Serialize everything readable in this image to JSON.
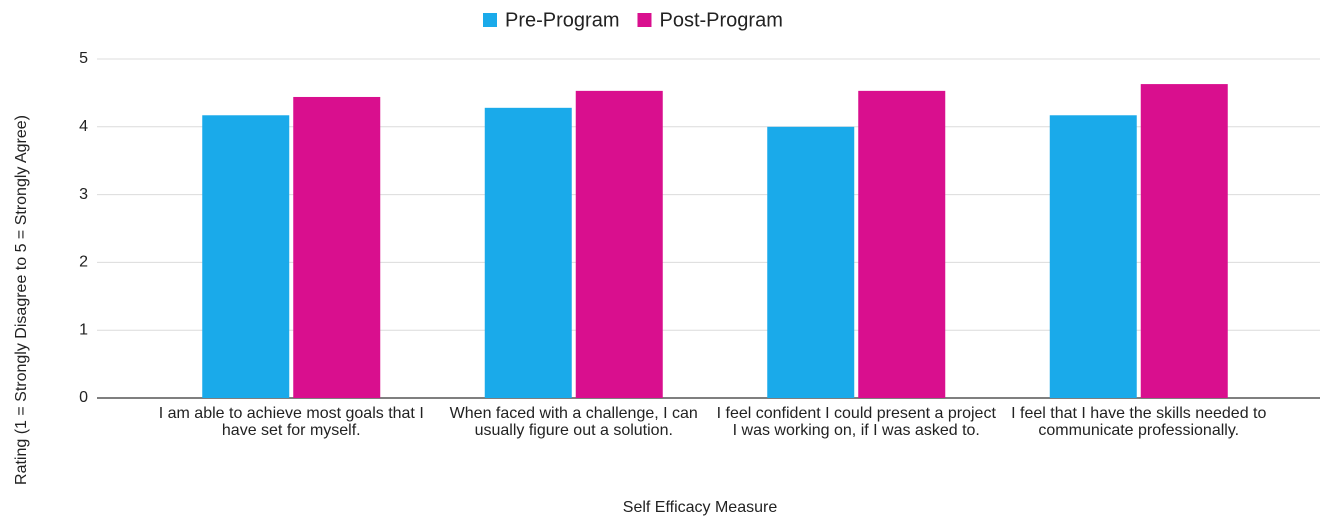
{
  "chart_data": {
    "type": "bar",
    "xlabel": "Self Efficacy Measure",
    "ylabel": "Rating (1 = Strongly Disagree to 5 = Strongly Agree)",
    "categories": [
      "I am able to achieve most goals that I have set for myself.",
      "When faced with a challenge, I can usually figure out a solution.",
      "I feel confident I could present a project I was working on, if I was asked to.",
      "I feel that I have the skills needed to communicate professionally."
    ],
    "series": [
      {
        "name": "Pre-Program",
        "color": "#1aaaea",
        "values": [
          4.17,
          4.28,
          4.0,
          4.17
        ]
      },
      {
        "name": "Post-Program",
        "color": "#d90f8e",
        "values": [
          4.44,
          4.53,
          4.53,
          4.63
        ]
      }
    ],
    "ylim": [
      0,
      5
    ],
    "yticks": [
      0,
      1,
      2,
      3,
      4,
      5
    ],
    "grid": true,
    "legend": "top"
  }
}
